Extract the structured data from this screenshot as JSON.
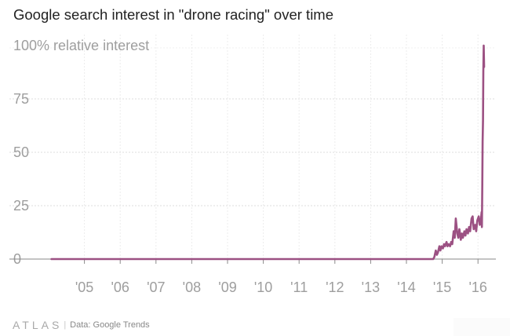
{
  "chart_data": {
    "type": "line",
    "title": "Google search interest in \"drone racing\" over time",
    "ylabel": "100% relative interest",
    "ylim": [
      0,
      100
    ],
    "yticks": [
      0,
      25,
      50,
      75
    ],
    "xlim": [
      2004.0,
      2016.5
    ],
    "xticks": [
      {
        "label": "'05",
        "value": 2005.0
      },
      {
        "label": "'06",
        "value": 2006.0
      },
      {
        "label": "'07",
        "value": 2007.0
      },
      {
        "label": "'08",
        "value": 2008.0
      },
      {
        "label": "'09",
        "value": 2009.0
      },
      {
        "label": "'10",
        "value": 2010.0
      },
      {
        "label": "'11",
        "value": 2011.0
      },
      {
        "label": "'12",
        "value": 2012.0
      },
      {
        "label": "'13",
        "value": 2013.0
      },
      {
        "label": "'14",
        "value": 2014.0
      },
      {
        "label": "'15",
        "value": 2015.0
      },
      {
        "label": "'16",
        "value": 2016.0
      }
    ],
    "grid": true,
    "series": [
      {
        "color": "#9c5183",
        "x": [
          2004.08,
          2014.75,
          2014.78,
          2014.82,
          2014.85,
          2014.88,
          2014.92,
          2014.95,
          2014.98,
          2015.02,
          2015.05,
          2015.08,
          2015.12,
          2015.15,
          2015.18,
          2015.22,
          2015.25,
          2015.28,
          2015.32,
          2015.35,
          2015.38,
          2015.42,
          2015.45,
          2015.48,
          2015.52,
          2015.55,
          2015.58,
          2015.62,
          2015.65,
          2015.68,
          2015.72,
          2015.75,
          2015.78,
          2015.82,
          2015.85,
          2015.88,
          2015.92,
          2015.95,
          2015.98,
          2016.02,
          2016.05,
          2016.08,
          2016.1,
          2016.11,
          2016.12,
          2016.13,
          2016.14,
          2016.15,
          2016.16,
          2016.17
        ],
        "y": [
          0,
          0,
          1,
          4,
          2,
          3,
          6,
          4,
          6,
          5,
          7,
          6,
          8,
          6,
          7,
          6,
          8,
          7,
          13,
          10,
          19,
          12,
          10,
          14,
          9,
          12,
          10,
          13,
          11,
          14,
          12,
          15,
          13,
          19,
          20,
          14,
          16,
          13,
          18,
          20,
          16,
          18,
          22,
          15,
          35,
          55,
          65,
          88,
          100,
          90
        ]
      }
    ],
    "source_logo": "ATLAS",
    "source": "Data: Google Trends"
  }
}
